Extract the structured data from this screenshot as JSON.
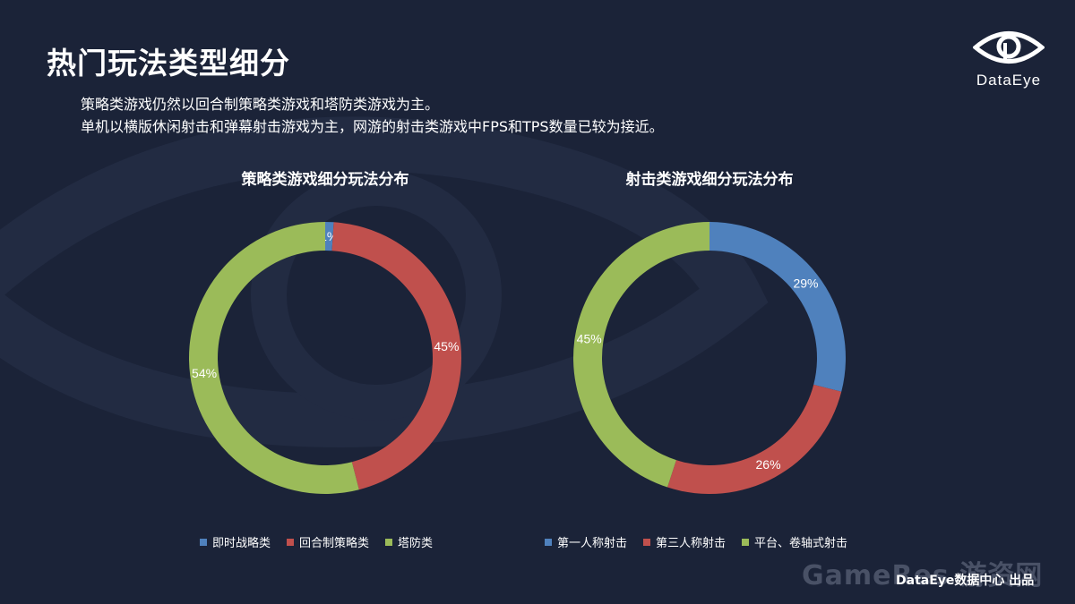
{
  "page": {
    "title": "热门玩法类型细分",
    "description": [
      "策略类游戏仍然以回合制策略类游戏和塔防类游戏为主。",
      "单机以横版休闲射击和弹幕射击游戏为主，网游的射击类游戏中FPS和TPS数量已较为接近。"
    ],
    "logo_text": "DataEye",
    "watermark": "GameRes 游资网",
    "footer": "DataEye数据中心 出品"
  },
  "colors": {
    "background": "#1b2338",
    "blue": "#4f81bd",
    "red": "#c0504d",
    "green": "#9bbb59"
  },
  "chart_data": [
    {
      "type": "pie",
      "variant": "donut",
      "title": "策略类游戏细分玩法分布",
      "categories": [
        "即时战略类",
        "回合制策略类",
        "塔防类"
      ],
      "values": [
        1,
        45,
        54
      ],
      "labels": [
        "1%",
        "45%",
        "54%"
      ],
      "colors": [
        "#4f81bd",
        "#c0504d",
        "#9bbb59"
      ],
      "legend": "bottom"
    },
    {
      "type": "pie",
      "variant": "donut",
      "title": "射击类游戏细分玩法分布",
      "categories": [
        "第一人称射击",
        "第三人称射击",
        "平台、卷轴式射击"
      ],
      "values": [
        29,
        26,
        45
      ],
      "labels": [
        "29%",
        "26%",
        "45%"
      ],
      "colors": [
        "#4f81bd",
        "#c0504d",
        "#9bbb59"
      ],
      "legend": "bottom"
    }
  ]
}
